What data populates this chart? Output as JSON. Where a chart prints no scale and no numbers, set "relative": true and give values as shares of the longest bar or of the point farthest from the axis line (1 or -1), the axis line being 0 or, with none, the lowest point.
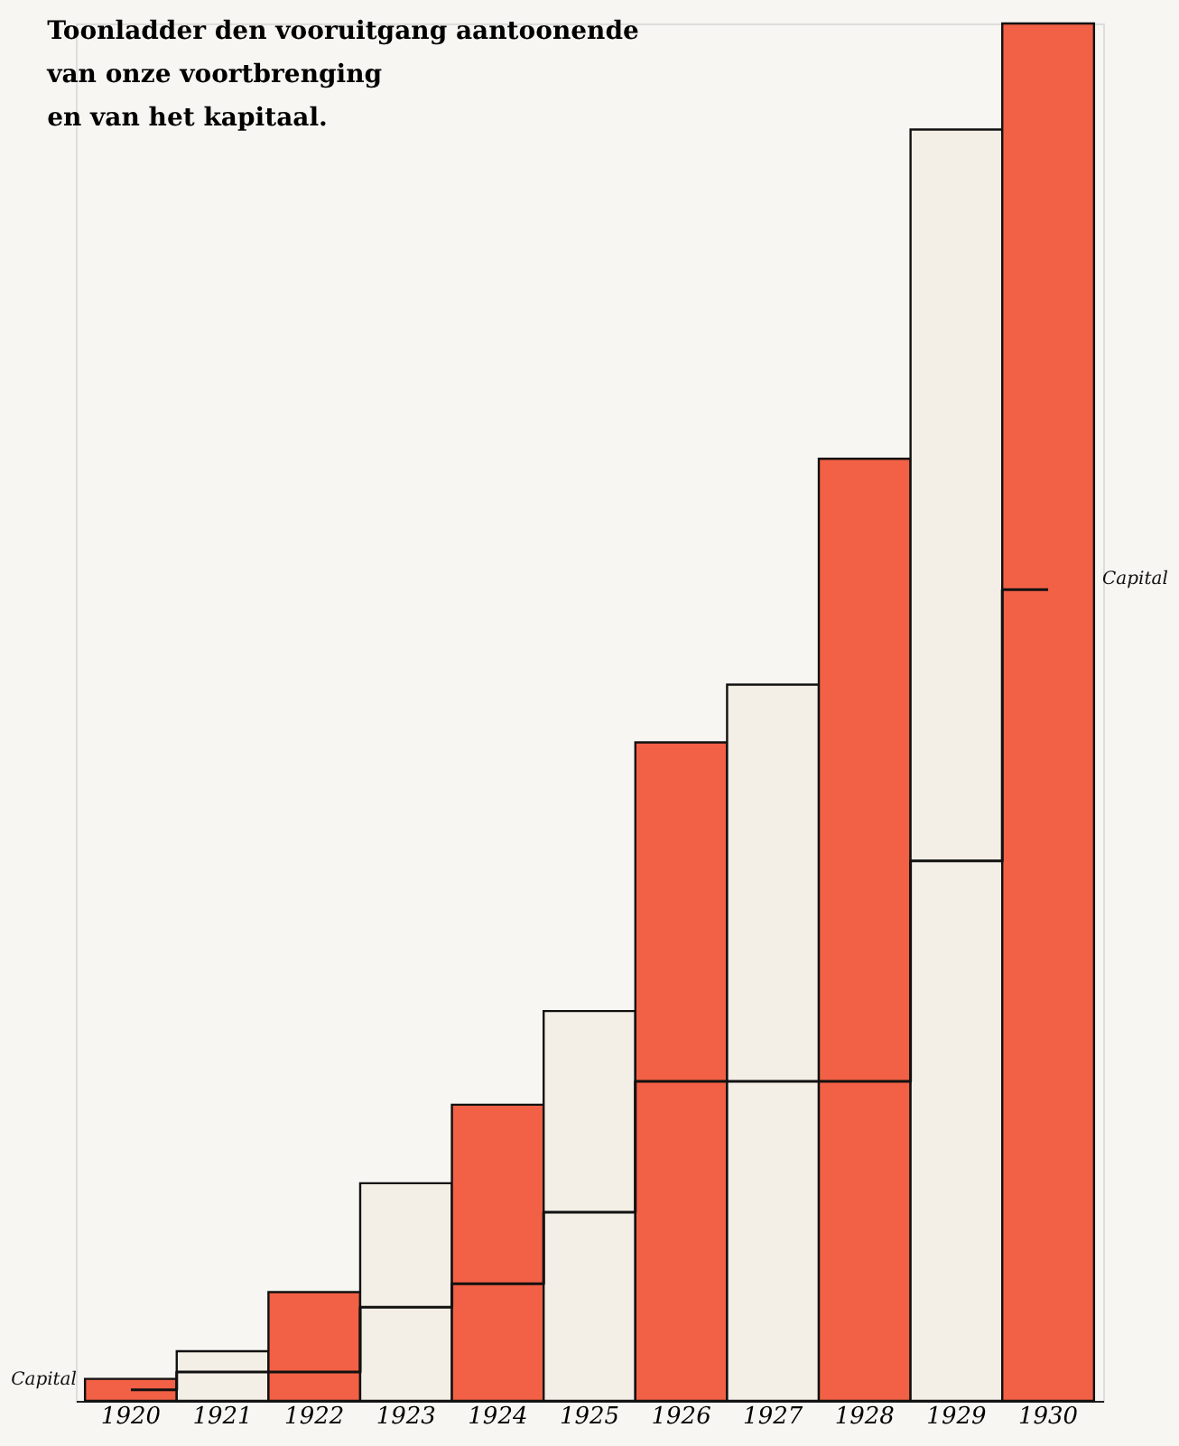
{
  "chart_data": {
    "type": "bar",
    "relative": true,
    "title": "Toonladder den vooruitgang aantoonende\nvan onze voortbrenging\nen van het kapitaal.",
    "categories": [
      "1920",
      "1921",
      "1922",
      "1923",
      "1924",
      "1925",
      "1926",
      "1927",
      "1928",
      "1929",
      "1930"
    ],
    "series": [
      {
        "colors": [
          "#f26045",
          "#f3efe6",
          "#f26045",
          "#f3efe6",
          "#f26045",
          "#f3efe6",
          "#f26045",
          "#f3efe6",
          "#f26045",
          "#f3efe6",
          "#f26045"
        ],
        "values": [
          0.016,
          0.036,
          0.079,
          0.158,
          0.215,
          0.283,
          0.478,
          0.52,
          0.684,
          0.923,
          1
        ]
      },
      {
        "type": "step",
        "name": "Capital",
        "color": "#111111",
        "values": [
          0.008,
          0.021,
          0.021,
          0.068,
          0.085,
          0.137,
          0.232,
          0.232,
          0.232,
          0.392,
          0.589
        ]
      }
    ],
    "grid": false
  }
}
